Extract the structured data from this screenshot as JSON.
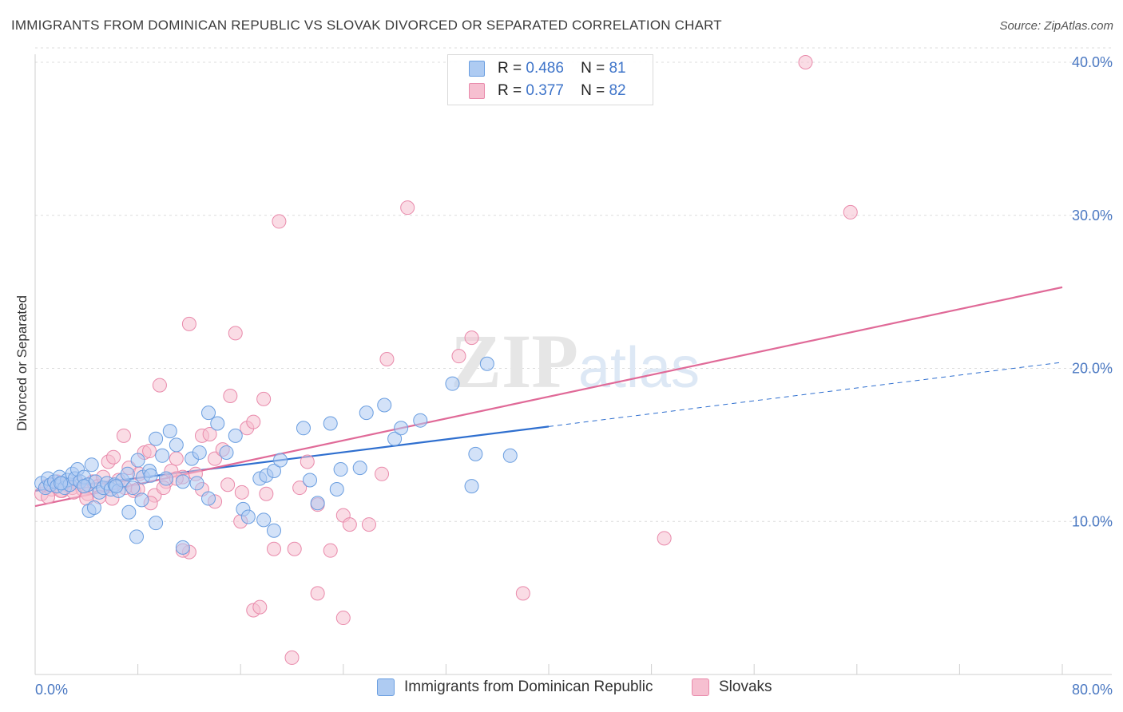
{
  "title": "IMMIGRANTS FROM DOMINICAN REPUBLIC VS SLOVAK DIVORCED OR SEPARATED CORRELATION CHART",
  "source": "Source: ZipAtlas.com",
  "watermark": "ZIPatlas",
  "legend_top": {
    "rows": [
      {
        "r_label": "R =",
        "r_value": "0.486",
        "n_label": "N =",
        "n_value": "81"
      },
      {
        "r_label": "R =",
        "r_value": "0.377",
        "n_label": "N =",
        "n_value": "82"
      }
    ]
  },
  "legend_bottom": {
    "items": [
      "Immigrants from Dominican Republic",
      "Slovaks"
    ]
  },
  "colors": {
    "blue_fill": "#aecbf2",
    "blue_stroke": "#6a9ee0",
    "blue_line": "#2f6fcf",
    "pink_fill": "#f6bfd0",
    "pink_stroke": "#e98aab",
    "pink_line": "#e06a98",
    "tick_text": "#4a78c2",
    "grid": "#dcdcdc"
  },
  "chart_data": {
    "type": "scatter",
    "title": "IMMIGRANTS FROM DOMINICAN REPUBLIC VS SLOVAK DIVORCED OR SEPARATED CORRELATION CHART",
    "xlabel": "",
    "ylabel": "Divorced or Separated",
    "xlim": [
      0,
      80
    ],
    "ylim": [
      0,
      40
    ],
    "x_tick_labels": [
      "0.0%",
      "80.0%"
    ],
    "y_ticks": [
      10,
      20,
      30,
      40
    ],
    "y_tick_labels": [
      "10.0%",
      "20.0%",
      "30.0%",
      "40.0%"
    ],
    "grid": true,
    "legend_position": "top-center",
    "series": [
      {
        "name": "Immigrants from Dominican Republic",
        "color": "#6a9ee0",
        "trend": {
          "x": [
            0,
            40
          ],
          "y": [
            12.0,
            16.2
          ],
          "dashed_extension_to": [
            80,
            20.4
          ]
        },
        "points": [
          [
            0.5,
            12.5
          ],
          [
            0.8,
            12.2
          ],
          [
            1.0,
            12.8
          ],
          [
            1.2,
            12.4
          ],
          [
            1.5,
            12.6
          ],
          [
            1.7,
            12.3
          ],
          [
            1.9,
            12.9
          ],
          [
            2.1,
            12.5
          ],
          [
            2.3,
            12.2
          ],
          [
            2.5,
            12.7
          ],
          [
            2.7,
            12.4
          ],
          [
            2.9,
            13.1
          ],
          [
            3.1,
            12.8
          ],
          [
            3.3,
            13.4
          ],
          [
            3.5,
            12.6
          ],
          [
            3.8,
            12.9
          ],
          [
            4.1,
            12.4
          ],
          [
            4.4,
            13.7
          ],
          [
            4.7,
            12.6
          ],
          [
            5.0,
            11.9
          ],
          [
            5.3,
            12.2
          ],
          [
            5.6,
            12.5
          ],
          [
            5.9,
            12.1
          ],
          [
            6.2,
            12.4
          ],
          [
            6.5,
            12.0
          ],
          [
            6.8,
            12.7
          ],
          [
            7.2,
            13.1
          ],
          [
            7.6,
            12.2
          ],
          [
            8.0,
            14.0
          ],
          [
            8.4,
            12.9
          ],
          [
            8.9,
            13.3
          ],
          [
            9.4,
            15.4
          ],
          [
            9.9,
            14.3
          ],
          [
            10.5,
            15.9
          ],
          [
            11.0,
            15.0
          ],
          [
            11.5,
            12.6
          ],
          [
            12.2,
            14.1
          ],
          [
            12.8,
            14.5
          ],
          [
            13.5,
            17.1
          ],
          [
            14.2,
            16.4
          ],
          [
            14.9,
            14.5
          ],
          [
            15.6,
            15.6
          ],
          [
            17.5,
            12.8
          ],
          [
            18.0,
            13.0
          ],
          [
            18.6,
            13.3
          ],
          [
            19.1,
            14.0
          ],
          [
            20.9,
            16.1
          ],
          [
            21.4,
            12.7
          ],
          [
            23.0,
            16.4
          ],
          [
            23.8,
            13.4
          ],
          [
            25.3,
            13.5
          ],
          [
            25.8,
            17.1
          ],
          [
            27.2,
            17.6
          ],
          [
            28.0,
            15.4
          ],
          [
            28.5,
            16.1
          ],
          [
            30.0,
            16.6
          ],
          [
            32.5,
            19.0
          ],
          [
            34.0,
            12.3
          ],
          [
            34.3,
            14.4
          ],
          [
            35.2,
            20.3
          ],
          [
            37.0,
            14.3
          ],
          [
            3.8,
            12.3
          ],
          [
            4.2,
            10.7
          ],
          [
            4.6,
            10.9
          ],
          [
            6.3,
            12.3
          ],
          [
            7.3,
            10.6
          ],
          [
            7.9,
            9.0
          ],
          [
            8.3,
            11.4
          ],
          [
            9.4,
            9.9
          ],
          [
            10.2,
            12.8
          ],
          [
            11.5,
            8.3
          ],
          [
            12.6,
            12.5
          ],
          [
            13.5,
            11.5
          ],
          [
            16.2,
            10.8
          ],
          [
            16.6,
            10.3
          ],
          [
            17.8,
            10.1
          ],
          [
            18.6,
            9.4
          ],
          [
            22.0,
            11.2
          ],
          [
            23.5,
            12.1
          ],
          [
            9.0,
            13.0
          ],
          [
            2.0,
            12.5
          ]
        ]
      },
      {
        "name": "Slovaks",
        "color": "#e98aab",
        "trend": {
          "x": [
            0,
            80
          ],
          "y": [
            11.0,
            25.3
          ]
        },
        "points": [
          [
            0.5,
            11.8
          ],
          [
            0.9,
            12.3
          ],
          [
            1.3,
            12.1
          ],
          [
            1.7,
            12.6
          ],
          [
            2.1,
            12.0
          ],
          [
            2.5,
            12.4
          ],
          [
            2.9,
            12.2
          ],
          [
            3.3,
            12.5
          ],
          [
            3.7,
            12.1
          ],
          [
            4.1,
            11.8
          ],
          [
            4.5,
            12.6
          ],
          [
            4.9,
            12.3
          ],
          [
            5.3,
            12.9
          ],
          [
            5.7,
            13.9
          ],
          [
            6.1,
            14.2
          ],
          [
            6.5,
            12.7
          ],
          [
            6.9,
            15.6
          ],
          [
            7.3,
            13.5
          ],
          [
            7.7,
            12.0
          ],
          [
            8.1,
            13.1
          ],
          [
            8.5,
            14.5
          ],
          [
            8.9,
            14.6
          ],
          [
            9.3,
            11.7
          ],
          [
            9.7,
            18.9
          ],
          [
            10.2,
            12.6
          ],
          [
            10.6,
            13.3
          ],
          [
            11.0,
            14.1
          ],
          [
            11.5,
            12.9
          ],
          [
            12.0,
            22.9
          ],
          [
            12.5,
            13.1
          ],
          [
            13.0,
            15.6
          ],
          [
            13.6,
            15.7
          ],
          [
            14.0,
            14.1
          ],
          [
            14.6,
            14.7
          ],
          [
            15.2,
            18.2
          ],
          [
            15.6,
            22.3
          ],
          [
            16.1,
            11.9
          ],
          [
            16.5,
            16.1
          ],
          [
            17.0,
            16.5
          ],
          [
            17.8,
            18.0
          ],
          [
            18.6,
            8.2
          ],
          [
            20.2,
            8.2
          ],
          [
            20.6,
            12.2
          ],
          [
            21.2,
            13.9
          ],
          [
            23.0,
            8.1
          ],
          [
            24.0,
            10.4
          ],
          [
            24.5,
            9.8
          ],
          [
            27.0,
            13.1
          ],
          [
            27.4,
            20.6
          ],
          [
            29.0,
            30.5
          ],
          [
            33.0,
            20.8
          ],
          [
            34.0,
            22.0
          ],
          [
            38.0,
            5.3
          ],
          [
            49.0,
            8.9
          ],
          [
            60.0,
            40.0
          ],
          [
            63.5,
            30.2
          ],
          [
            19.0,
            29.6
          ],
          [
            12.0,
            8.0
          ],
          [
            11.5,
            8.1
          ],
          [
            17.0,
            4.2
          ],
          [
            17.5,
            4.4
          ],
          [
            20.0,
            1.1
          ],
          [
            22.0,
            5.3
          ],
          [
            24.0,
            3.7
          ],
          [
            16.0,
            10.0
          ],
          [
            14.0,
            11.3
          ],
          [
            13.0,
            12.1
          ],
          [
            9.0,
            11.2
          ],
          [
            6.0,
            11.5
          ],
          [
            5.0,
            11.6
          ],
          [
            4.0,
            11.5
          ],
          [
            3.0,
            11.9
          ],
          [
            1.0,
            11.6
          ],
          [
            2.0,
            12.0
          ],
          [
            7.0,
            12.2
          ],
          [
            10.0,
            12.2
          ],
          [
            11.0,
            12.8
          ],
          [
            15.0,
            12.4
          ],
          [
            18.0,
            11.8
          ],
          [
            22.0,
            11.1
          ],
          [
            26.0,
            9.8
          ],
          [
            8.0,
            12.1
          ]
        ]
      }
    ]
  }
}
